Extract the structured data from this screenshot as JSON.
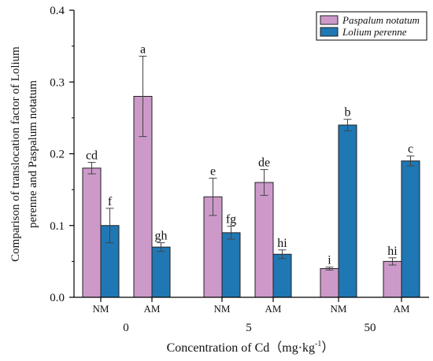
{
  "chart_data": {
    "type": "bar",
    "title": "",
    "xlabel": "Concentration of Cd（mg·kg",
    "xlabel_superscript": "-1",
    "xlabel_suffix": "）",
    "ylabel_lines": [
      "Comparison of translocation factor of Lolium",
      "perenne and Paspalum notatum"
    ],
    "ylim": [
      0,
      0.4
    ],
    "yticks": [
      "0.0",
      "0.1",
      "0.2",
      "0.3",
      "0.4"
    ],
    "ytick_values": [
      0,
      0.1,
      0.2,
      0.3,
      0.4
    ],
    "groups": [
      "0",
      "5",
      "50"
    ],
    "categories": [
      "NM",
      "AM",
      "NM",
      "AM",
      "NM",
      "AM"
    ],
    "legend_position": "top-right",
    "series": [
      {
        "name": "Paspalum notatum",
        "color": "#cc99c9",
        "values": [
          0.18,
          0.28,
          0.14,
          0.16,
          0.04,
          0.05
        ],
        "errors": [
          0.008,
          0.056,
          0.026,
          0.018,
          0.002,
          0.005
        ],
        "letters": [
          "cd",
          "a",
          "e",
          "de",
          "i",
          "hi"
        ]
      },
      {
        "name": "Lolium perenne",
        "color": "#1f77b4",
        "values": [
          0.1,
          0.07,
          0.09,
          0.06,
          0.24,
          0.19
        ],
        "errors": [
          0.024,
          0.006,
          0.009,
          0.006,
          0.008,
          0.007
        ],
        "letters": [
          "f",
          "gh",
          "fg",
          "hi",
          "b",
          "c"
        ]
      }
    ]
  }
}
